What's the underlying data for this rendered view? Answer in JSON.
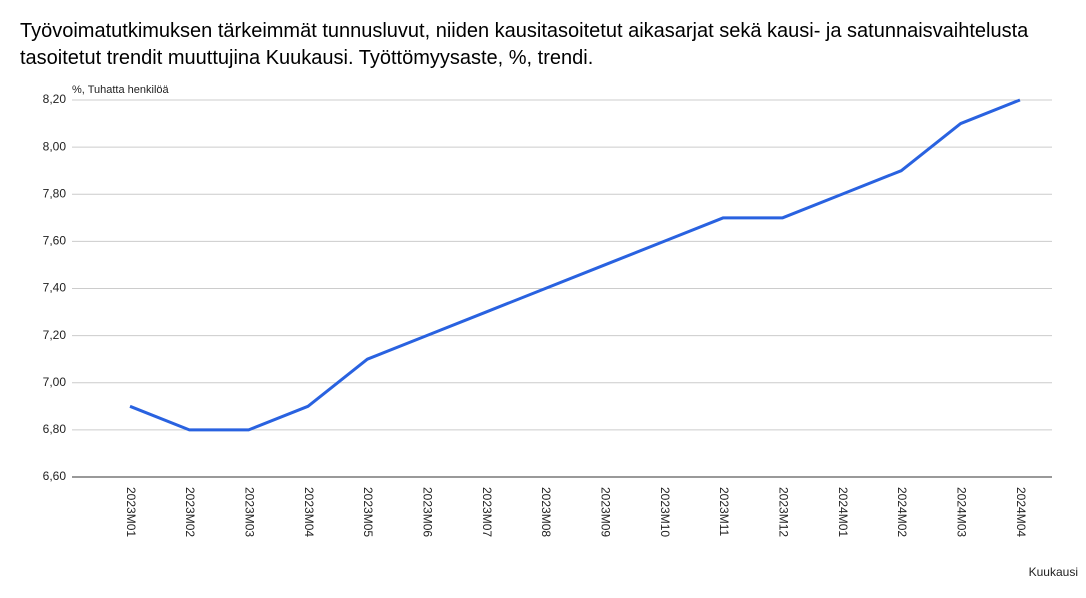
{
  "chart_data": {
    "type": "line",
    "title": "Työvoimatutkimuksen tärkeimmät tunnusluvut, niiden kausitasoitetut aikasarjat sekä kausi- ja satunnaisvaihtelusta tasoitetut trendit muuttujina Kuukausi. Työttömyysaste, %, trendi.",
    "y_label": "%, Tuhatta henkilöä",
    "x_label": "Kuukausi",
    "categories": [
      "2023M01",
      "2023M02",
      "2023M03",
      "2023M04",
      "2023M05",
      "2023M06",
      "2023M07",
      "2023M08",
      "2023M09",
      "2023M10",
      "2023M11",
      "2023M12",
      "2024M01",
      "2024M02",
      "2024M03",
      "2024M04"
    ],
    "values": [
      6.9,
      6.8,
      6.8,
      6.9,
      7.1,
      7.2,
      7.3,
      7.4,
      7.5,
      7.6,
      7.7,
      7.7,
      7.8,
      7.9,
      8.1,
      8.2
    ],
    "color": "#2962e0",
    "ylim": [
      6.6,
      8.2
    ],
    "yticks": [
      {
        "value": 6.6,
        "label": "6,60"
      },
      {
        "value": 6.8,
        "label": "6,80"
      },
      {
        "value": 7.0,
        "label": "7,00"
      },
      {
        "value": 7.2,
        "label": "7,20"
      },
      {
        "value": 7.4,
        "label": "7,40"
      },
      {
        "value": 7.6,
        "label": "7,60"
      },
      {
        "value": 7.8,
        "label": "7,80"
      },
      {
        "value": 8.0,
        "label": "8,00"
      },
      {
        "value": 8.2,
        "label": "8,20"
      }
    ],
    "grid": true
  }
}
